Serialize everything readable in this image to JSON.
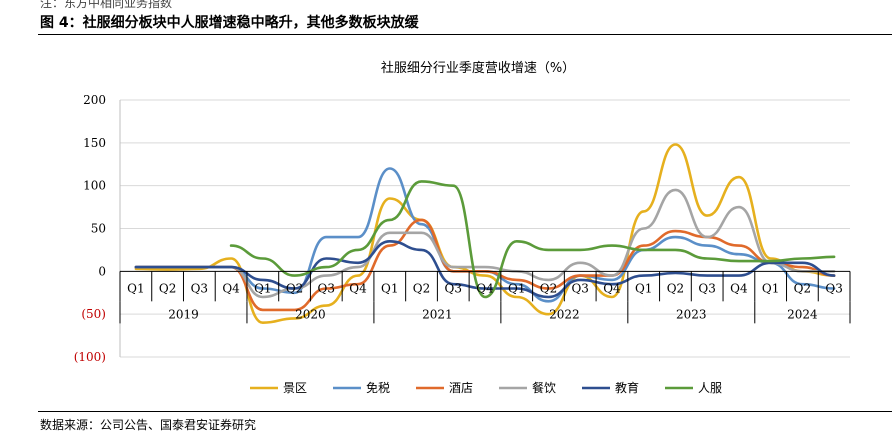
{
  "header": {
    "top_note": "注：东方中相同业务指数",
    "figure_title": "图 4：社服细分板块中人服增速稳中略升，其他多数板块放缓"
  },
  "footer": {
    "source": "数据来源：公司公告、国泰君安证券研究"
  },
  "chart_data": {
    "type": "line",
    "title": "社服细分行业季度营收增速（%）",
    "ylim": [
      -100,
      200
    ],
    "yticks": [
      200,
      150,
      100,
      50,
      0,
      -50,
      -100
    ],
    "ytick_labels": [
      "200",
      "150",
      "100",
      "50",
      "0",
      "(50)",
      "(100)"
    ],
    "negative_label_color": "#C00000",
    "grid": "horizontal",
    "legend_position": "bottom",
    "quarter_labels": [
      "Q1",
      "Q2",
      "Q3",
      "Q4",
      "Q1",
      "Q2",
      "Q3",
      "Q4",
      "Q1",
      "Q2",
      "Q3",
      "Q4",
      "Q1",
      "Q2",
      "Q3",
      "Q4",
      "Q1",
      "Q2",
      "Q3",
      "Q4",
      "Q1",
      "Q2",
      "Q3"
    ],
    "years": [
      {
        "label": "2019",
        "span": 4
      },
      {
        "label": "2020",
        "span": 4
      },
      {
        "label": "2021",
        "span": 4
      },
      {
        "label": "2022",
        "span": 4
      },
      {
        "label": "2023",
        "span": 4
      },
      {
        "label": "2024",
        "span": 3
      }
    ],
    "series": [
      {
        "name": "景区",
        "color": "#E6B01E",
        "values": [
          3,
          2,
          3,
          15,
          -60,
          -55,
          -40,
          -5,
          85,
          60,
          5,
          -5,
          -30,
          -50,
          -5,
          -30,
          70,
          148,
          65,
          110,
          15,
          0,
          -5
        ]
      },
      {
        "name": "免税",
        "color": "#5B8FC8",
        "values": [
          5,
          5,
          5,
          5,
          -20,
          -25,
          40,
          40,
          120,
          55,
          0,
          0,
          -15,
          -35,
          -5,
          -10,
          25,
          40,
          30,
          20,
          10,
          -15,
          -20
        ]
      },
      {
        "name": "酒店",
        "color": "#E06A2B",
        "values": [
          5,
          5,
          5,
          5,
          -45,
          -45,
          -20,
          -15,
          30,
          60,
          0,
          0,
          -10,
          -20,
          -5,
          -5,
          30,
          47,
          40,
          30,
          10,
          5,
          -5
        ]
      },
      {
        "name": "餐饮",
        "color": "#A5A5A5",
        "values": [
          5,
          5,
          5,
          5,
          -30,
          -20,
          -5,
          5,
          45,
          45,
          5,
          5,
          0,
          -10,
          10,
          -5,
          50,
          95,
          40,
          75,
          10,
          0,
          0
        ]
      },
      {
        "name": "教育",
        "color": "#2E4E8F",
        "values": [
          5,
          5,
          5,
          5,
          -10,
          -20,
          15,
          10,
          35,
          25,
          -15,
          -20,
          -20,
          -30,
          -10,
          -15,
          -5,
          -2,
          -5,
          -5,
          10,
          10,
          -5
        ]
      },
      {
        "name": "人服",
        "color": "#5B9B3A",
        "values": [
          null,
          null,
          null,
          30,
          15,
          -5,
          5,
          25,
          60,
          105,
          100,
          -30,
          35,
          25,
          25,
          30,
          25,
          25,
          15,
          12,
          12,
          15,
          17
        ]
      }
    ]
  }
}
